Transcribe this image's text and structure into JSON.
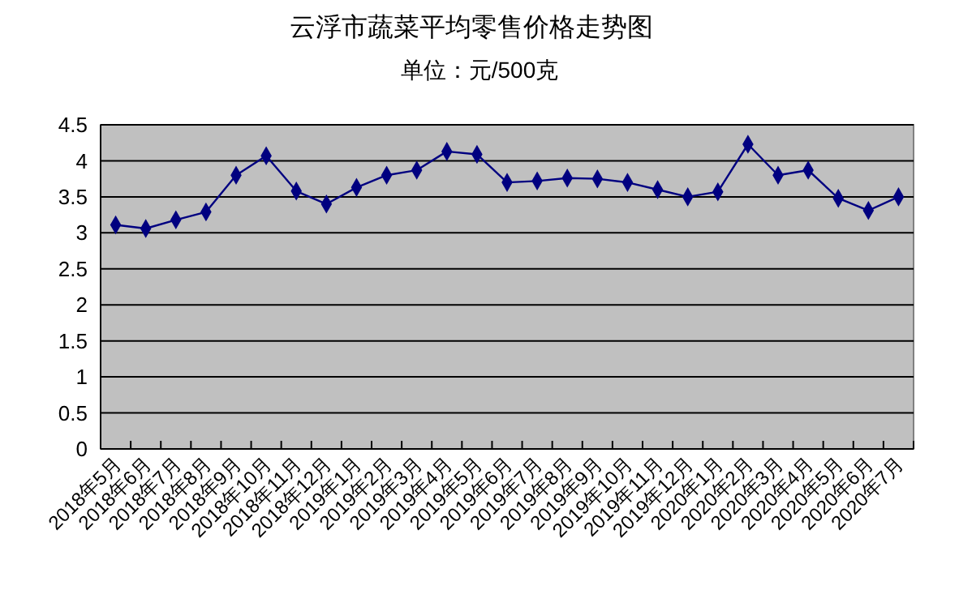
{
  "chart_data": {
    "type": "line",
    "title": "云浮市蔬菜平均零售价格走势图",
    "subtitle": "单位：元/500克",
    "categories": [
      "2018年5月",
      "2018年6月",
      "2018年7月",
      "2018年8月",
      "2018年9月",
      "2018年10月",
      "2018年11月",
      "2018年12月",
      "2019年1月",
      "2019年2月",
      "2019年3月",
      "2019年4月",
      "2019年5月",
      "2019年6月",
      "2019年7月",
      "2019年8月",
      "2019年9月",
      "2019年10月",
      "2019年11月",
      "2019年12月",
      "2020年1月",
      "2020年2月",
      "2020年3月",
      "2020年4月",
      "2020年5月",
      "2020年6月",
      "2020年7月"
    ],
    "series": [
      {
        "color": "#000080",
        "values": [
          3.11,
          3.06,
          3.18,
          3.29,
          3.8,
          4.07,
          3.58,
          3.4,
          3.63,
          3.8,
          3.87,
          4.13,
          4.09,
          3.7,
          3.72,
          3.76,
          3.75,
          3.7,
          3.6,
          3.5,
          3.57,
          4.23,
          3.8,
          3.87,
          3.48,
          3.31,
          3.5
        ]
      }
    ],
    "ylim": [
      0,
      4.5
    ],
    "yticks": [
      0,
      0.5,
      1,
      1.5,
      2,
      2.5,
      3,
      3.5,
      4,
      4.5
    ],
    "grid": "y",
    "marker": "diamond",
    "line_style": "solid"
  }
}
